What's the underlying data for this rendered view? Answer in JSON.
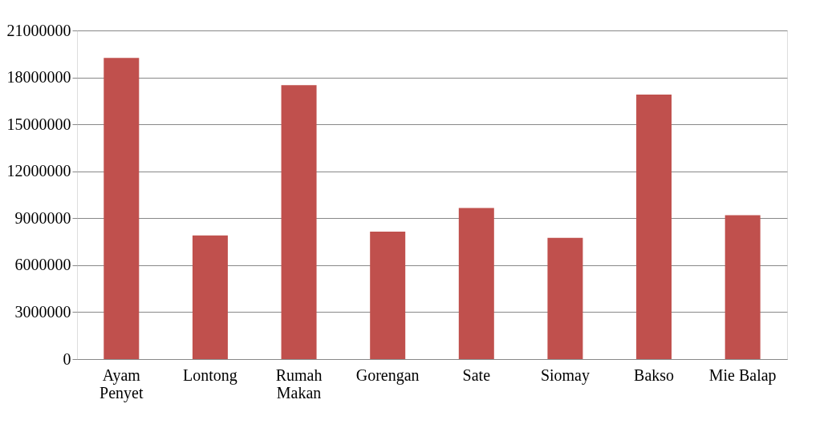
{
  "chart_data": {
    "type": "bar",
    "categories": [
      "Ayam Penyet",
      "Lontong",
      "Rumah Makan",
      "Gorengan",
      "Sate",
      "Siomay",
      "Bakso",
      "Mie Balap"
    ],
    "values": [
      19250000,
      7900000,
      17500000,
      8150000,
      9650000,
      7750000,
      16900000,
      9200000
    ],
    "color": "#c0504d",
    "ylim": [
      0,
      21000000
    ],
    "yticks": [
      0,
      3000000,
      6000000,
      9000000,
      12000000,
      15000000,
      18000000,
      21000000
    ],
    "grid": "y"
  }
}
